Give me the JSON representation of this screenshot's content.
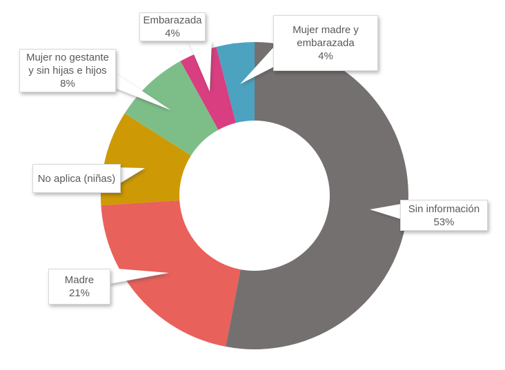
{
  "chart_data": {
    "type": "pie",
    "subtype": "donut",
    "title": "",
    "legend": "none",
    "direction": "clockwise",
    "start_angle_deg": 0,
    "slices": [
      {
        "id": "sin-informacion",
        "label": "Sin información",
        "value": 53,
        "color": "#757070"
      },
      {
        "id": "madre",
        "label": "Madre",
        "value": 21,
        "color": "#E8615A"
      },
      {
        "id": "no-aplica-ninas",
        "label": "No aplica (niñas)",
        "value": 10,
        "color": "#CD9A05"
      },
      {
        "id": "mujer-no-gestante",
        "label": "Mujer no gestante y sin hijas e hijos",
        "value": 8,
        "color": "#7DBE88"
      },
      {
        "id": "embarazada",
        "label": "Embarazada",
        "value": 4,
        "color": "#D83E80"
      },
      {
        "id": "mujer-madre-embarazada",
        "label": "Mujer madre y embarazada",
        "value": 4,
        "color": "#4BA3C0"
      }
    ]
  },
  "callouts": [
    {
      "id": "sin-informacion",
      "lines": [
        "Sin información",
        "53%"
      ]
    },
    {
      "id": "madre",
      "lines": [
        "Madre",
        "21%"
      ]
    },
    {
      "id": "no-aplica-ninas",
      "lines": [
        "No aplica (niñas)"
      ]
    },
    {
      "id": "mujer-no-gestante",
      "lines": [
        "Mujer no gestante",
        "y sin hijas e hijos",
        "8%"
      ]
    },
    {
      "id": "embarazada",
      "lines": [
        "Embarazada",
        "4%"
      ]
    },
    {
      "id": "mujer-madre-embarazada",
      "lines": [
        "Mujer madre y",
        "embarazada",
        "4%"
      ]
    }
  ],
  "styles": {
    "background": "#FFFFFF",
    "label_text_color": "#595959",
    "label_box_border": "#D8D8D8"
  }
}
